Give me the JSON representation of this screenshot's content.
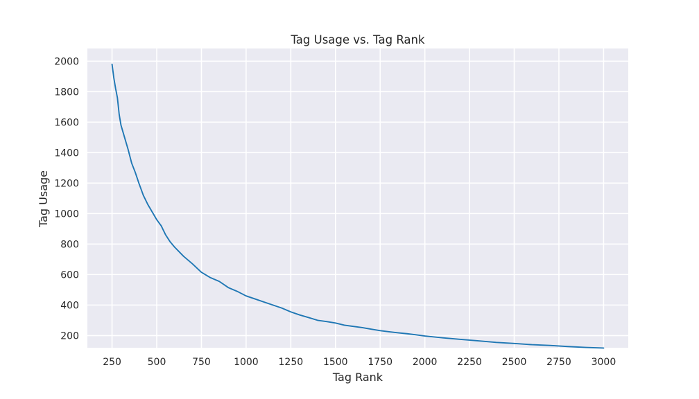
{
  "chart_data": {
    "type": "line",
    "title": "Tag Usage vs. Tag Rank",
    "xlabel": "Tag Rank",
    "ylabel": "Tag Usage",
    "xlim": [
      112,
      3138
    ],
    "ylim": [
      120,
      2083
    ],
    "x_ticks": [
      250,
      500,
      750,
      1000,
      1250,
      1500,
      1750,
      2000,
      2250,
      2500,
      2750,
      3000
    ],
    "y_ticks": [
      200,
      400,
      600,
      800,
      1000,
      1200,
      1400,
      1600,
      1800,
      2000
    ],
    "grid": true,
    "legend": "none",
    "colors": {
      "background": "#eaeaf2",
      "grid": "#ffffff",
      "line": "#1f77b4",
      "text": "#262626"
    },
    "series": [
      {
        "x": [
          250,
          260,
          270,
          280,
          290,
          300,
          320,
          340,
          360,
          380,
          400,
          425,
          450,
          475,
          500,
          525,
          550,
          575,
          600,
          650,
          700,
          750,
          800,
          850,
          900,
          950,
          1000,
          1050,
          1100,
          1150,
          1200,
          1250,
          1300,
          1350,
          1400,
          1450,
          1500,
          1550,
          1600,
          1650,
          1700,
          1750,
          1800,
          1850,
          1900,
          1950,
          2000,
          2100,
          2200,
          2300,
          2400,
          2500,
          2600,
          2700,
          2800,
          2900,
          3000
        ],
        "y": [
          1980,
          1890,
          1820,
          1760,
          1650,
          1580,
          1500,
          1420,
          1330,
          1270,
          1200,
          1120,
          1060,
          1010,
          960,
          920,
          860,
          815,
          780,
          720,
          670,
          615,
          580,
          555,
          515,
          490,
          460,
          440,
          420,
          400,
          380,
          355,
          335,
          318,
          300,
          292,
          282,
          268,
          260,
          252,
          242,
          232,
          225,
          218,
          212,
          205,
          197,
          185,
          175,
          165,
          155,
          148,
          140,
          135,
          128,
          122,
          118
        ]
      }
    ]
  }
}
